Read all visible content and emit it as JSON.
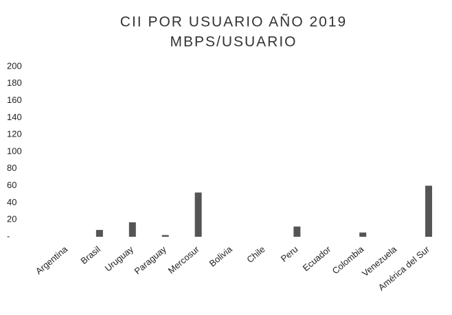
{
  "chart_data": {
    "type": "bar",
    "title": "CII POR USUARIO AÑO 2019",
    "subtitle": "MBPS/USUARIO",
    "categories": [
      "Argentina",
      "Brasil",
      "Uruguay",
      "Paraguay",
      "Mercosur",
      "Bolivia",
      "Chile",
      "Peru",
      "Ecuador",
      "Colombia",
      "Venezuela",
      "América del Sur"
    ],
    "values": [
      0,
      8,
      17,
      2,
      52,
      0,
      0,
      12,
      0,
      5,
      0,
      60
    ],
    "color": "#555555",
    "ylim": [
      0,
      200
    ],
    "yticks": [
      {
        "value": 0,
        "label": "-"
      },
      20,
      40,
      60,
      80,
      100,
      120,
      140,
      160,
      180,
      200
    ],
    "grid": false
  }
}
